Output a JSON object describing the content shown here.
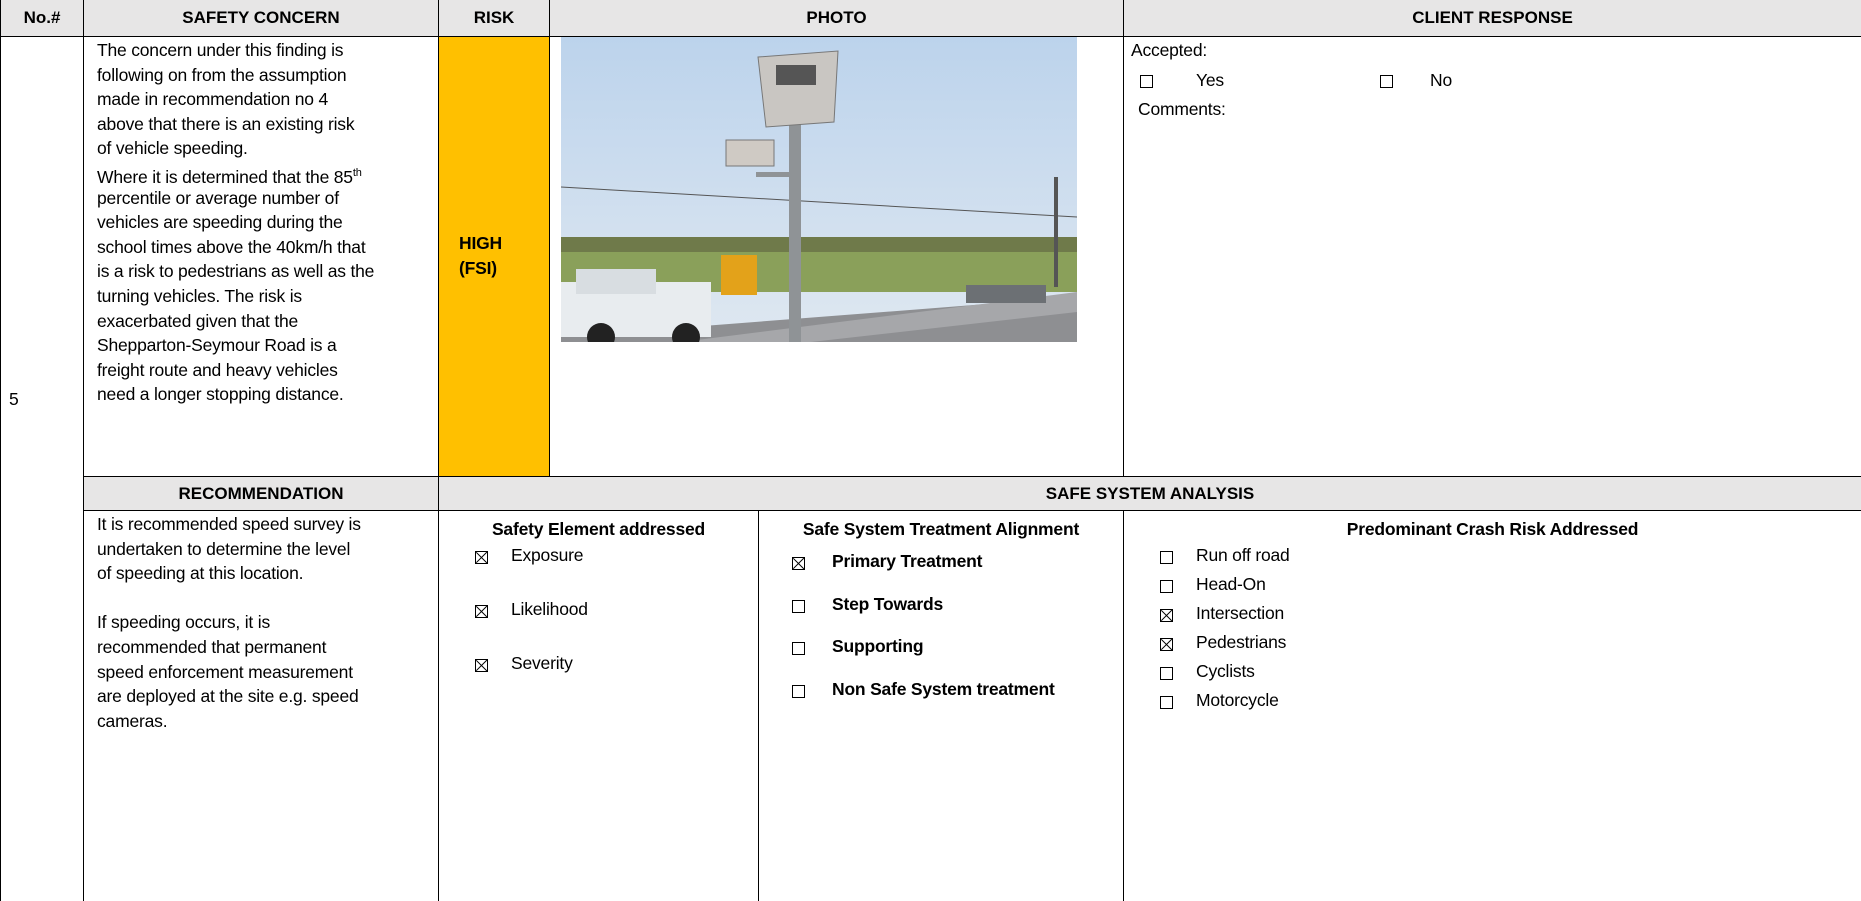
{
  "header": {
    "no": "No.#",
    "safety_concern": "SAFETY CONCERN",
    "risk": "RISK",
    "photo": "PHOTO",
    "client_response": "CLIENT RESPONSE"
  },
  "finding": {
    "number": "5",
    "concern": [
      "The concern under this finding is",
      "following on from the assumption",
      "made in recommendation no 4",
      "above that there is an existing risk",
      "of vehicle speeding.",
      {
        "text": "Where it is determined that the 85",
        "sup": "th"
      },
      "percentile or average number of",
      "vehicles are speeding during the",
      "school times above the 40km/h that",
      "is a risk to pedestrians as well as the",
      "turning vehicles. The risk is",
      "exacerbated given that the",
      "Shepparton-Seymour Road is a",
      "freight route and heavy vehicles",
      "need a longer stopping distance."
    ],
    "risk": [
      "HIGH",
      "(FSI)"
    ],
    "client_response": {
      "accepted": "Accepted:",
      "options": [
        {
          "label": "Yes",
          "checked": false
        },
        {
          "label": "No",
          "checked": false
        }
      ],
      "comments": "Comments:"
    }
  },
  "lower_header": {
    "recommendation": "RECOMMENDATION",
    "safe_system_analysis": "SAFE SYSTEM ANALYSIS"
  },
  "recommendation": [
    [
      "It is recommended speed survey is",
      "undertaken to determine the level",
      "of speeding at this location."
    ],
    [
      "If speeding occurs, it is",
      "recommended that permanent",
      "speed enforcement measurement",
      "are deployed at the site e.g. speed",
      "cameras."
    ]
  ],
  "analysis": {
    "safety_element": {
      "title": "Safety Element addressed",
      "items": [
        {
          "label": "Exposure",
          "checked": true
        },
        {
          "label": "Likelihood",
          "checked": true
        },
        {
          "label": "Severity",
          "checked": true
        }
      ]
    },
    "treatment": {
      "title": "Safe System Treatment Alignment",
      "items": [
        {
          "label": "Primary Treatment",
          "checked": true
        },
        {
          "label": "Step Towards",
          "checked": false
        },
        {
          "label": "Supporting",
          "checked": false
        },
        {
          "label": "Non Safe System treatment",
          "checked": false
        }
      ]
    },
    "crash_risk": {
      "title": "Predominant Crash Risk Addressed",
      "items": [
        {
          "label": "Run off road",
          "checked": false
        },
        {
          "label": "Head-On",
          "checked": false
        },
        {
          "label": "Intersection",
          "checked": true
        },
        {
          "label": "Pedestrians",
          "checked": true
        },
        {
          "label": "Cyclists",
          "checked": false
        },
        {
          "label": "Motorcycle",
          "checked": false
        }
      ]
    }
  }
}
